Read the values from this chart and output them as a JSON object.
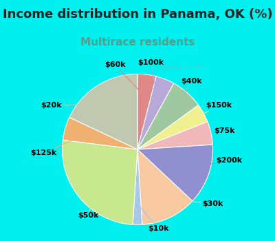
{
  "title": "Income distribution in Panama, OK (%)",
  "subtitle": "Multirace residents",
  "watermark": "City-Data.com",
  "background_cyan": "#00EFEF",
  "background_inner": "#dff0e8",
  "labels_clockwise": [
    "$60k",
    "$100k",
    "$40k",
    "$150k",
    "$75k",
    "$200k",
    "$30k",
    "$10k",
    "$50k",
    "$125k",
    "$20k"
  ],
  "values_clockwise": [
    4,
    4,
    7,
    4,
    5,
    13,
    12,
    2,
    26,
    5,
    18
  ],
  "colors_clockwise": [
    "#e08888",
    "#b8a8d8",
    "#a0c8a0",
    "#f0f090",
    "#f0b8b8",
    "#9090d0",
    "#f8c8a0",
    "#a8c8e8",
    "#c8e890",
    "#f0b070",
    "#c0c8b0"
  ],
  "title_fontsize": 13,
  "subtitle_fontsize": 11,
  "subtitle_color": "#50a090",
  "label_fontsize": 8
}
